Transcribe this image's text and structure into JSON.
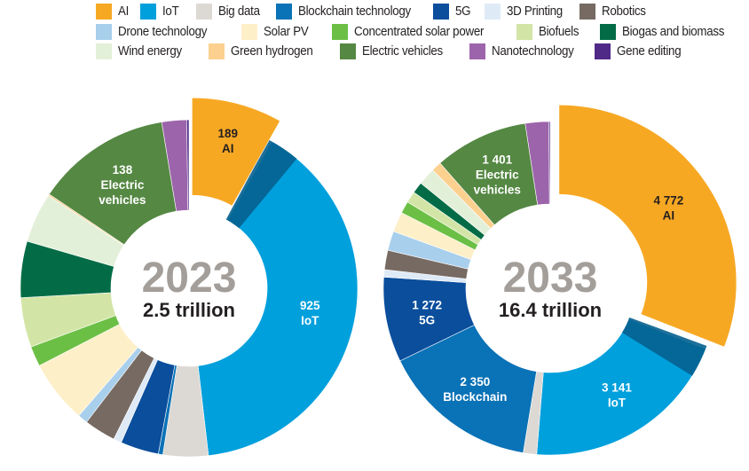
{
  "legend": [
    [
      {
        "key": "ai",
        "label": "AI",
        "color": "#f7a823"
      },
      {
        "key": "iot",
        "label": "IoT",
        "color": "#00a0dc"
      },
      {
        "key": "bigdata",
        "label": "Big data",
        "color": "#dcd8d4"
      },
      {
        "key": "blockchain",
        "label": "Blockchain technology",
        "color": "#0a72b6"
      },
      {
        "key": "5g",
        "label": "5G",
        "color": "#0a4e9c"
      },
      {
        "key": "3dprinting",
        "label": "3D Printing",
        "color": "#dfeaf7"
      },
      {
        "key": "robotics",
        "label": "Robotics",
        "color": "#766a62"
      }
    ],
    [
      {
        "key": "drone",
        "label": "Drone technology",
        "color": "#a8cfec"
      },
      {
        "key": "solarpv",
        "label": "Solar PV",
        "color": "#fdefc8"
      },
      {
        "key": "csp",
        "label": "Concentrated solar power",
        "color": "#6cbf45"
      },
      {
        "key": "biofuels",
        "label": "Biofuels",
        "color": "#d3e5a6"
      },
      {
        "key": "biogas",
        "label": "Biogas and biomass",
        "color": "#036c46"
      }
    ],
    [
      {
        "key": "wind",
        "label": "Wind energy",
        "color": "#e3f0d9"
      },
      {
        "key": "hydrogen",
        "label": "Green hydrogen",
        "color": "#fcd08e"
      },
      {
        "key": "ev",
        "label": "Electric vehicles",
        "color": "#558843"
      },
      {
        "key": "nano",
        "label": "Nanotechnology",
        "color": "#9c64ab"
      },
      {
        "key": "gene",
        "label": "Gene editing",
        "color": "#4f2a87"
      }
    ]
  ],
  "chart_data": [
    {
      "type": "pie",
      "variant": "donut",
      "title": "2023",
      "center_year": "2023",
      "center_total": "2.5 trillion",
      "unit": "US$ billion (market size)",
      "note": "Unlabelled slice values are estimated from slice angles",
      "exploded": "ai",
      "slices": [
        {
          "key": "ai",
          "value": 189,
          "label_value": "189",
          "label_name": "AI",
          "label_color": "#231f20"
        },
        {
          "key": "iot",
          "value": 925,
          "label_value": "925",
          "label_name": "IoT",
          "label_color": "#ffffff"
        },
        {
          "key": "bigdata",
          "value": 100
        },
        {
          "key": "blockchain",
          "value": 10
        },
        {
          "key": "5g",
          "value": 85
        },
        {
          "key": "3dprinting",
          "value": 18
        },
        {
          "key": "robotics",
          "value": 70
        },
        {
          "key": "drone",
          "value": 22
        },
        {
          "key": "solarpv",
          "value": 140
        },
        {
          "key": "csp",
          "value": 45
        },
        {
          "key": "biofuels",
          "value": 110
        },
        {
          "key": "biogas",
          "value": 125
        },
        {
          "key": "wind",
          "value": 110
        },
        {
          "key": "hydrogen",
          "value": 4
        },
        {
          "key": "ev",
          "value": 138,
          "label_value": "138",
          "label_name": "Electric vehicles",
          "label_color": "#ffffff",
          "display_weight": 300
        },
        {
          "key": "nano",
          "value": 55
        },
        {
          "key": "gene",
          "value": 5
        }
      ]
    },
    {
      "type": "pie",
      "variant": "donut",
      "title": "2033",
      "center_year": "2033",
      "center_total": "16.4 trillion",
      "unit": "US$ billion (market size)",
      "note": "Unlabelled slice values are estimated from slice angles",
      "exploded": "ai",
      "slices": [
        {
          "key": "ai",
          "value": 4772,
          "label_value": "4 772",
          "label_name": "AI",
          "label_color": "#231f20"
        },
        {
          "key": "iot",
          "value": 3141,
          "label_value": "3 141",
          "label_name": "IoT",
          "label_color": "#ffffff"
        },
        {
          "key": "bigdata",
          "value": 200
        },
        {
          "key": "blockchain",
          "value": 2350,
          "label_value": "2 350",
          "label_name": "Blockchain",
          "label_color": "#ffffff"
        },
        {
          "key": "5g",
          "value": 1272,
          "label_value": "1 272",
          "label_name": "5G",
          "label_color": "#ffffff"
        },
        {
          "key": "3dprinting",
          "value": 110
        },
        {
          "key": "robotics",
          "value": 290
        },
        {
          "key": "drone",
          "value": 290
        },
        {
          "key": "solarpv",
          "value": 300
        },
        {
          "key": "csp",
          "value": 180
        },
        {
          "key": "biofuels",
          "value": 170
        },
        {
          "key": "biogas",
          "value": 170
        },
        {
          "key": "wind",
          "value": 260
        },
        {
          "key": "hydrogen",
          "value": 150
        },
        {
          "key": "ev",
          "value": 1401,
          "label_value": "1 401",
          "label_name": "Electric vehicles",
          "label_color": "#ffffff"
        },
        {
          "key": "nano",
          "value": 350
        },
        {
          "key": "gene",
          "value": 20
        }
      ]
    }
  ]
}
